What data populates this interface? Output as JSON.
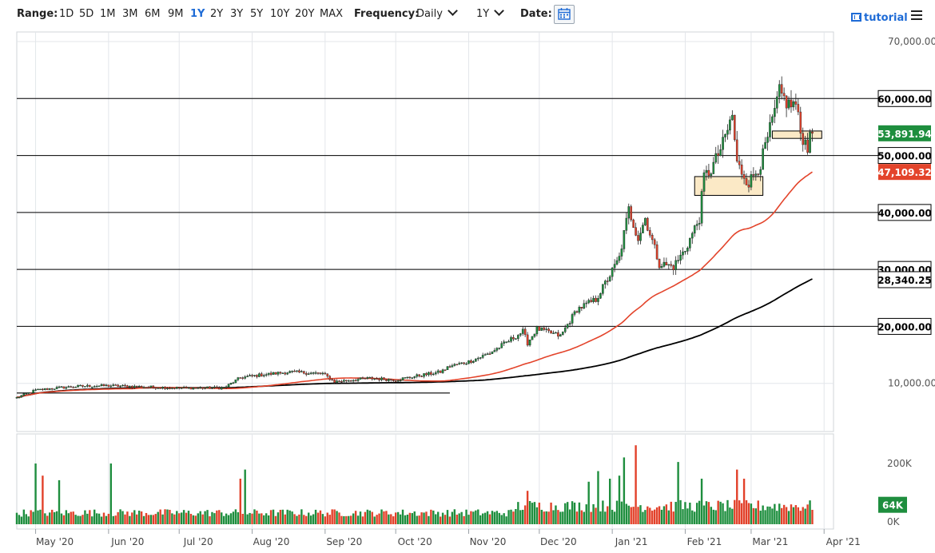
{
  "toolbar": {
    "range_label": "Range:",
    "ranges": [
      "1D",
      "5D",
      "1M",
      "3M",
      "6M",
      "9M",
      "1Y",
      "2Y",
      "3Y",
      "5Y",
      "10Y",
      "20Y",
      "MAX"
    ],
    "active_range": "1Y",
    "frequency_label": "Frequency:",
    "frequency_value": "Daily",
    "period_value": "1Y",
    "date_label": "Date:",
    "calendar_icon": "calendar-icon",
    "tutorial_label": "tutorial",
    "tutorial_icon": "film-icon",
    "menu_icon": "hamburger-menu-icon"
  },
  "colors": {
    "up": "#1e8e3e",
    "down": "#e2412a",
    "ma_short": "#e3442b",
    "ma_long": "#000000",
    "last_price": "#1e8e3e",
    "accent": "#1e6bd6",
    "zone_fill": "#fbe9c6"
  },
  "chart_data": {
    "type": "candlestick",
    "price_axis": {
      "min": 0,
      "max": 70000,
      "ticks": [
        10000,
        20000,
        30000,
        40000,
        50000,
        60000,
        70000
      ],
      "tick_labels": [
        "10,000.00",
        "20,000.00",
        "30,000.00",
        "40,000.00",
        "50,000.00",
        "60,000.00",
        "70,000.00"
      ]
    },
    "x_axis": {
      "start": "2020-04-23",
      "end": "2021-04-05",
      "ticks": [
        "2020-05-01",
        "2020-06-01",
        "2020-07-01",
        "2020-08-01",
        "2020-09-01",
        "2020-10-01",
        "2020-11-01",
        "2020-12-01",
        "2021-01-01",
        "2021-02-01",
        "2021-03-01",
        "2021-04-01"
      ],
      "tick_labels": [
        "May '20",
        "Jun '20",
        "Jul '20",
        "Aug '20",
        "Sep '20",
        "Oct '20",
        "Nov '20",
        "Dec '20",
        "Jan '21",
        "Feb '21",
        "Mar '21",
        "Apr '21"
      ]
    },
    "close_anchors": [
      [
        "2020-04-23",
        7500
      ],
      [
        "2020-05-01",
        8800
      ],
      [
        "2020-05-10",
        9200
      ],
      [
        "2020-05-20",
        9500
      ],
      [
        "2020-06-01",
        9600
      ],
      [
        "2020-06-15",
        9400
      ],
      [
        "2020-07-01",
        9200
      ],
      [
        "2020-07-20",
        9200
      ],
      [
        "2020-07-27",
        11000
      ],
      [
        "2020-08-05",
        11500
      ],
      [
        "2020-08-17",
        12000
      ],
      [
        "2020-08-31",
        11700
      ],
      [
        "2020-09-05",
        10300
      ],
      [
        "2020-09-20",
        10900
      ],
      [
        "2020-10-01",
        10600
      ],
      [
        "2020-10-10",
        11300
      ],
      [
        "2020-10-20",
        12000
      ],
      [
        "2020-10-24",
        13000
      ],
      [
        "2020-11-01",
        13800
      ],
      [
        "2020-11-10",
        15300
      ],
      [
        "2020-11-20",
        18000
      ],
      [
        "2020-11-24",
        19100
      ],
      [
        "2020-11-26",
        17100
      ],
      [
        "2020-11-30",
        19600
      ],
      [
        "2020-12-10",
        18300
      ],
      [
        "2020-12-17",
        23000
      ],
      [
        "2020-12-25",
        24700
      ],
      [
        "2020-12-31",
        29000
      ],
      [
        "2021-01-04",
        32000
      ],
      [
        "2021-01-08",
        40500
      ],
      [
        "2021-01-12",
        35500
      ],
      [
        "2021-01-15",
        39000
      ],
      [
        "2021-01-21",
        31000
      ],
      [
        "2021-01-27",
        30500
      ],
      [
        "2021-02-01",
        33500
      ],
      [
        "2021-02-07",
        39000
      ],
      [
        "2021-02-09",
        46300
      ],
      [
        "2021-02-12",
        47500
      ],
      [
        "2021-02-17",
        52000
      ],
      [
        "2021-02-21",
        57000
      ],
      [
        "2021-02-23",
        48500
      ],
      [
        "2021-02-28",
        45200
      ],
      [
        "2021-03-05",
        48500
      ],
      [
        "2021-03-10",
        56000
      ],
      [
        "2021-03-13",
        61000
      ],
      [
        "2021-03-17",
        58900
      ],
      [
        "2021-03-20",
        59000
      ],
      [
        "2021-03-22",
        54000
      ],
      [
        "2021-03-24",
        52300
      ],
      [
        "2021-03-25",
        51500
      ],
      [
        "2021-03-26",
        55100
      ],
      [
        "2021-03-27",
        53891.94
      ]
    ],
    "last_price": 53891.94,
    "last_price_label": "53,891.94",
    "moving_averages": [
      {
        "period_hint": "short",
        "last_value": 47109.32,
        "last_label": "47,109.32"
      },
      {
        "period_hint": "long",
        "last_value": 28340.25,
        "last_label": "28,340.25"
      }
    ],
    "horizontal_levels": [
      20000,
      30000,
      40000,
      50000,
      60000
    ],
    "level_labels": [
      "20,000.00",
      "30,000.00",
      "40,000.00",
      "50,000.00",
      "60,000.00"
    ],
    "support_line": {
      "from": "2020-04-23",
      "to": "2020-10-24",
      "value": 8300
    },
    "zones": [
      {
        "from": "2021-02-05",
        "to": "2021-03-06",
        "low": 43000,
        "high": 46300
      },
      {
        "from": "2021-03-10",
        "to": "2021-03-31",
        "low": 53000,
        "high": 54300
      }
    ],
    "volume_axis": {
      "ticks": [
        0,
        64000,
        200000
      ],
      "tick_labels": [
        "0K",
        "",
        "200K"
      ]
    },
    "last_volume_label": "64K",
    "volume_spikes": [
      [
        "2020-05-01",
        200000
      ],
      [
        "2020-05-04",
        160000
      ],
      [
        "2020-05-11",
        145000
      ],
      [
        "2020-06-02",
        200000
      ],
      [
        "2020-07-27",
        150000
      ],
      [
        "2020-07-29",
        180000
      ],
      [
        "2020-11-26",
        110000
      ],
      [
        "2020-12-22",
        140000
      ],
      [
        "2020-12-26",
        175000
      ],
      [
        "2020-12-31",
        150000
      ],
      [
        "2021-01-04",
        160000
      ],
      [
        "2021-01-06",
        220000
      ],
      [
        "2021-01-11",
        260000
      ],
      [
        "2021-01-29",
        205000
      ],
      [
        "2021-02-08",
        150000
      ],
      [
        "2021-02-23",
        180000
      ],
      [
        "2021-02-26",
        150000
      ]
    ]
  }
}
